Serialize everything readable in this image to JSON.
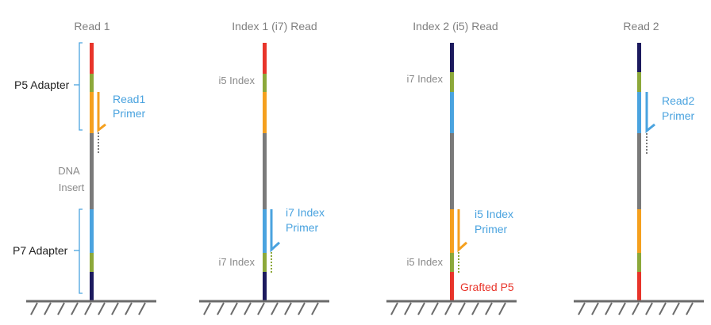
{
  "colors": {
    "red": "#e8342a",
    "olive": "#8ca83a",
    "orange": "#f5a01e",
    "gray": "#7a7a7a",
    "blue": "#4aa3df",
    "navy": "#1c1a5e",
    "bracket": "#4aa3df",
    "ground": "#6b6b6b"
  },
  "panels": [
    {
      "title": "Read 1",
      "labels": {
        "p5_adapter": "P5 Adapter",
        "read1_primer_line1": "Read1",
        "read1_primer_line2": "Primer",
        "dna": "DNA",
        "insert": "Insert",
        "p7_adapter": "P7 Adapter"
      }
    },
    {
      "title": "Index 1 (i7) Read",
      "labels": {
        "i5_index": "i5 Index",
        "i7_primer_line1": "i7 Index",
        "i7_primer_line2": "Primer",
        "i7_index": "i7 Index"
      }
    },
    {
      "title": "Index 2 (i5) Read",
      "labels": {
        "i7_index": "i7 Index",
        "i5_primer_line1": "i5 Index",
        "i5_primer_line2": "Primer",
        "i5_index": "i5 Index",
        "grafted_p5": "Grafted P5"
      }
    },
    {
      "title": "Read 2",
      "labels": {
        "read2_primer_line1": "Read2",
        "read2_primer_line2": "Primer"
      }
    }
  ]
}
